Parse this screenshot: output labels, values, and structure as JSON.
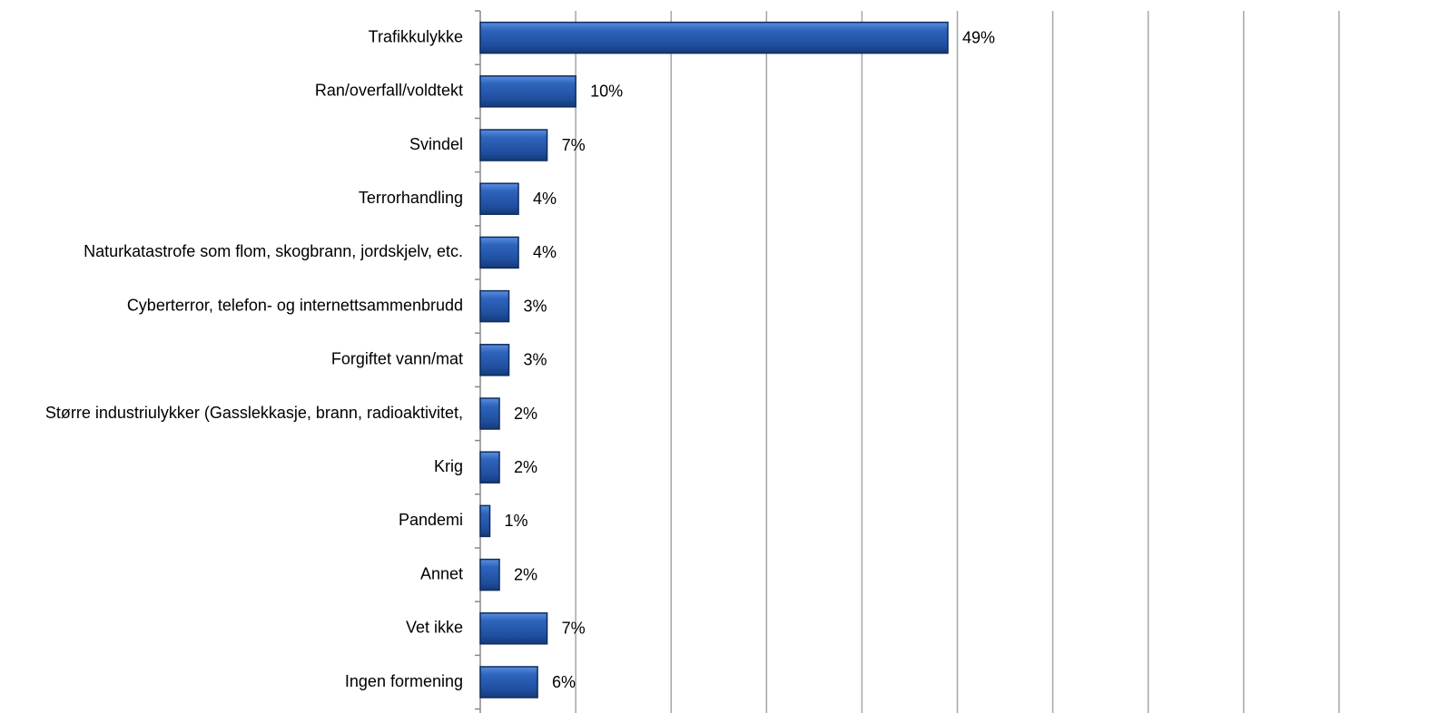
{
  "chart_data": {
    "type": "barh",
    "categories": [
      "Trafikkulykke",
      "Ran/overfall/voldtekt",
      "Svindel",
      "Terrorhandling",
      "Naturkatastrofe som flom, skogbrann, jordskjelv, etc.",
      "Cyberterror, telefon- og internettsammenbrudd",
      "Forgiftet vann/mat",
      "Større industriulykker (Gasslekkasje, brann, radioaktivitet,",
      "Krig",
      "Pandemi",
      "Annet",
      "Vet ikke",
      "Ingen formening"
    ],
    "values": [
      49,
      10,
      7,
      4,
      4,
      3,
      3,
      2,
      2,
      1,
      2,
      7,
      6
    ],
    "value_labels": [
      "49%",
      "10%",
      "7%",
      "4%",
      "4%",
      "3%",
      "3%",
      "2%",
      "2%",
      "1%",
      "2%",
      "7%",
      "6%"
    ],
    "color": "#2a5db0",
    "xlim": [
      0,
      100
    ],
    "xticks": [
      10,
      20,
      30,
      40,
      50,
      60,
      70,
      80,
      90
    ],
    "grid": true
  }
}
